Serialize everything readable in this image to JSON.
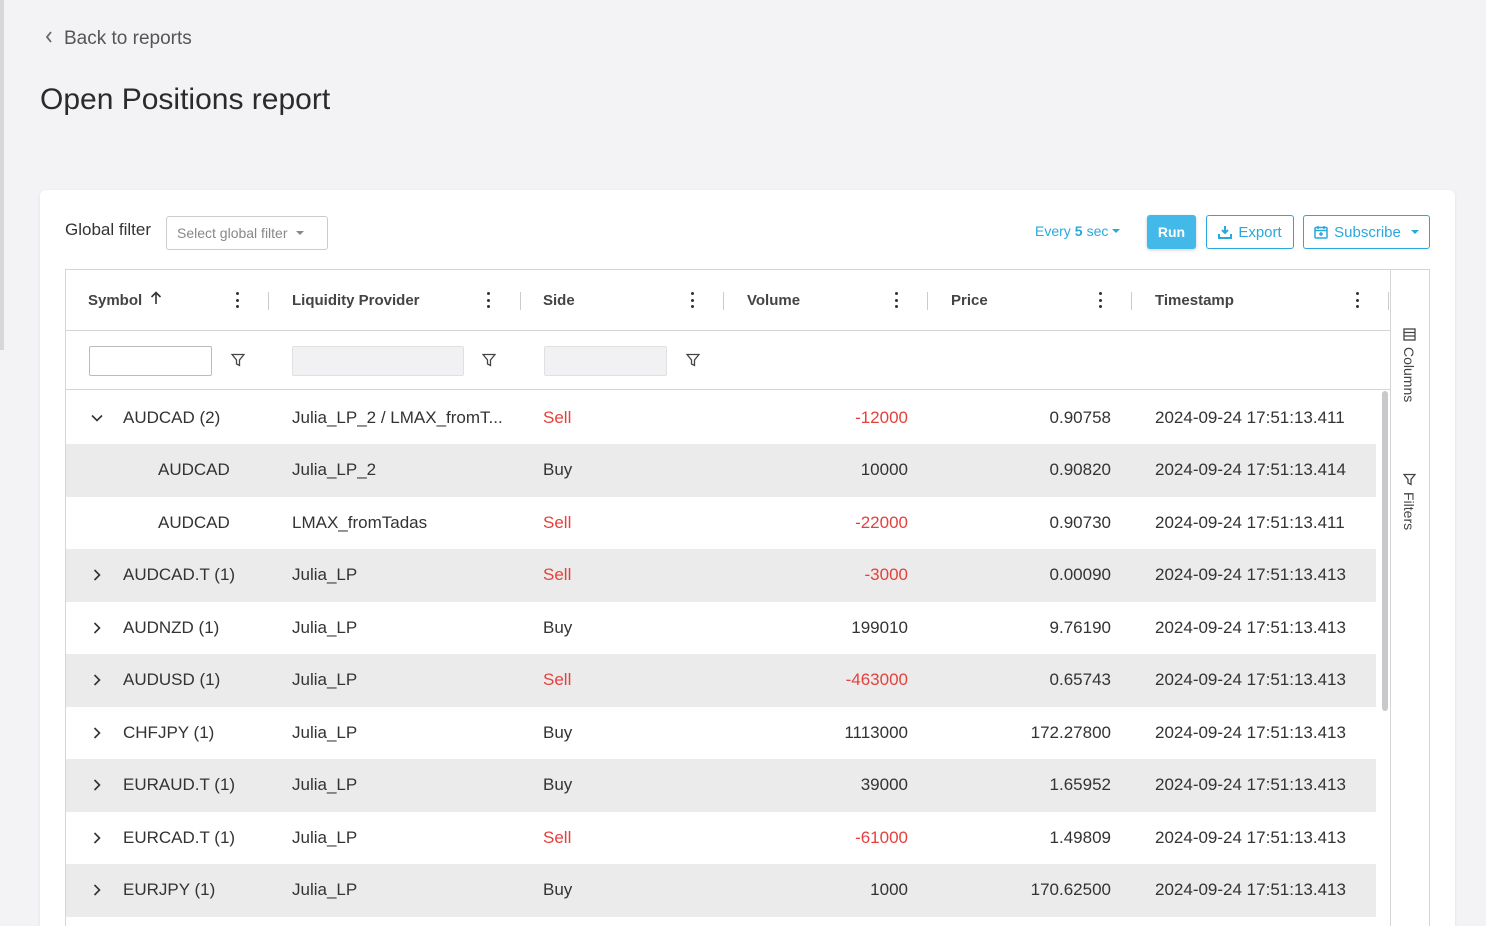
{
  "nav": {
    "back_label": "Back to reports"
  },
  "page": {
    "title": "Open Positions report"
  },
  "toolbar": {
    "global_filter_label": "Global filter",
    "global_filter_placeholder": "Select global filter",
    "refresh_prefix": "Every",
    "refresh_value": "5",
    "refresh_unit": "sec",
    "run_label": "Run",
    "export_label": "Export",
    "subscribe_label": "Subscribe"
  },
  "columns": [
    {
      "label": "Symbol",
      "sorted": "ascending"
    },
    {
      "label": "Liquidity Provider"
    },
    {
      "label": "Side"
    },
    {
      "label": "Volume"
    },
    {
      "label": "Price"
    },
    {
      "label": "Timestamp"
    }
  ],
  "side_panel": {
    "columns_label": "Columns",
    "filters_label": "Filters"
  },
  "rows": [
    {
      "symbol": "AUDCAD (2)",
      "lp": "Julia_LP_2 / LMAX_fromT...",
      "side": "Sell",
      "volume": "-12000",
      "price": "0.90758",
      "timestamp": "2024-09-24 17:51:13.411",
      "group": true,
      "expanded": true
    },
    {
      "symbol": "AUDCAD",
      "lp": "Julia_LP_2",
      "side": "Buy",
      "volume": "10000",
      "price": "0.90820",
      "timestamp": "2024-09-24 17:51:13.414",
      "group": false
    },
    {
      "symbol": "AUDCAD",
      "lp": "LMAX_fromTadas",
      "side": "Sell",
      "volume": "-22000",
      "price": "0.90730",
      "timestamp": "2024-09-24 17:51:13.411",
      "group": false
    },
    {
      "symbol": "AUDCAD.T (1)",
      "lp": "Julia_LP",
      "side": "Sell",
      "volume": "-3000",
      "price": "0.00090",
      "timestamp": "2024-09-24 17:51:13.413",
      "group": true,
      "expanded": false
    },
    {
      "symbol": "AUDNZD (1)",
      "lp": "Julia_LP",
      "side": "Buy",
      "volume": "199010",
      "price": "9.76190",
      "timestamp": "2024-09-24 17:51:13.413",
      "group": true,
      "expanded": false
    },
    {
      "symbol": "AUDUSD (1)",
      "lp": "Julia_LP",
      "side": "Sell",
      "volume": "-463000",
      "price": "0.65743",
      "timestamp": "2024-09-24 17:51:13.413",
      "group": true,
      "expanded": false
    },
    {
      "symbol": "CHFJPY (1)",
      "lp": "Julia_LP",
      "side": "Buy",
      "volume": "1113000",
      "price": "172.27800",
      "timestamp": "2024-09-24 17:51:13.413",
      "group": true,
      "expanded": false
    },
    {
      "symbol": "EURAUD.T (1)",
      "lp": "Julia_LP",
      "side": "Buy",
      "volume": "39000",
      "price": "1.65952",
      "timestamp": "2024-09-24 17:51:13.413",
      "group": true,
      "expanded": false
    },
    {
      "symbol": "EURCAD.T (1)",
      "lp": "Julia_LP",
      "side": "Sell",
      "volume": "-61000",
      "price": "1.49809",
      "timestamp": "2024-09-24 17:51:13.413",
      "group": true,
      "expanded": false
    },
    {
      "symbol": "EURJPY (1)",
      "lp": "Julia_LP",
      "side": "Buy",
      "volume": "1000",
      "price": "170.62500",
      "timestamp": "2024-09-24 17:51:13.413",
      "group": true,
      "expanded": false
    }
  ],
  "colors": {
    "accent": "#29a8dd",
    "run_bg": "#42b9e8",
    "sell": "#e5413c",
    "row_alt": "#ebebeb"
  }
}
